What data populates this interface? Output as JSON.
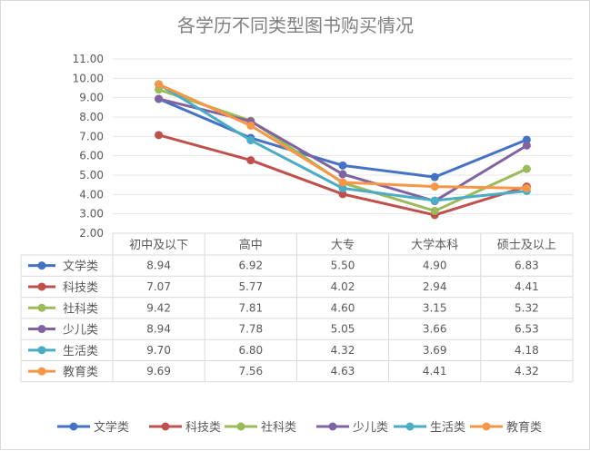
{
  "chart_data": {
    "type": "line",
    "title": "各学历不同类型图书购买情况",
    "categories": [
      "初中及以下",
      "高中",
      "大专",
      "大学本科",
      "硕士及以上"
    ],
    "ylim": [
      2.0,
      11.0
    ],
    "yticks": [
      "11.00",
      "10.00",
      "9.00",
      "8.00",
      "7.00",
      "6.00",
      "5.00",
      "4.00",
      "3.00",
      "2.00"
    ],
    "grid": true,
    "legend_position": "bottom",
    "data_table": true,
    "series": [
      {
        "name": "文学类",
        "color": "#4472c4",
        "values": [
          8.94,
          6.92,
          5.5,
          4.9,
          6.83
        ],
        "labels": [
          "8.94",
          "6.92",
          "5.50",
          "4.90",
          "6.83"
        ]
      },
      {
        "name": "科技类",
        "color": "#c0504d",
        "values": [
          7.07,
          5.77,
          4.02,
          2.94,
          4.41
        ],
        "labels": [
          "7.07",
          "5.77",
          "4.02",
          "2.94",
          "4.41"
        ]
      },
      {
        "name": "社科类",
        "color": "#9bbb59",
        "values": [
          9.42,
          7.81,
          4.6,
          3.15,
          5.32
        ],
        "labels": [
          "9.42",
          "7.81",
          "4.60",
          "3.15",
          "5.32"
        ]
      },
      {
        "name": "少儿类",
        "color": "#8064a2",
        "values": [
          8.94,
          7.78,
          5.05,
          3.66,
          6.53
        ],
        "labels": [
          "8.94",
          "7.78",
          "5.05",
          "3.66",
          "6.53"
        ]
      },
      {
        "name": "生活类",
        "color": "#4bacc6",
        "values": [
          9.7,
          6.8,
          4.32,
          3.69,
          4.18
        ],
        "labels": [
          "9.70",
          "6.80",
          "4.32",
          "3.69",
          "4.18"
        ]
      },
      {
        "name": "教育类",
        "color": "#f79646",
        "values": [
          9.69,
          7.56,
          4.63,
          4.41,
          4.32
        ],
        "labels": [
          "9.69",
          "7.56",
          "4.63",
          "4.41",
          "4.32"
        ]
      }
    ]
  }
}
